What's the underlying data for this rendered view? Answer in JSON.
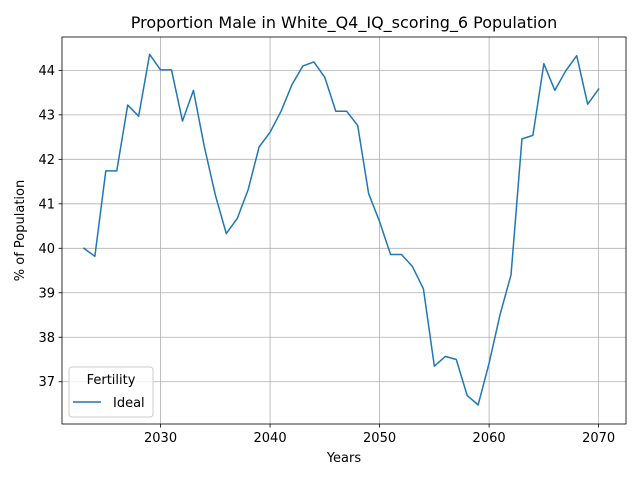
{
  "chart_data": {
    "type": "line",
    "title": "Proportion Male in White_Q4_IQ_scoring_6 Population",
    "xlabel": "Years",
    "ylabel": "% of Population",
    "xlim": [
      2021,
      2072.5
    ],
    "ylim": [
      36.05,
      44.75
    ],
    "xticks": [
      2030,
      2040,
      2050,
      2060,
      2070
    ],
    "yticks": [
      37,
      38,
      39,
      40,
      41,
      42,
      43,
      44
    ],
    "grid": true,
    "legend": {
      "title": "Fertility",
      "placement": "lower-left"
    },
    "series": [
      {
        "name": "Ideal",
        "color": "#1f77b4",
        "x": [
          2023,
          2024,
          2025,
          2026,
          2027,
          2028,
          2029,
          2030,
          2031,
          2032,
          2033,
          2034,
          2035,
          2036,
          2037,
          2038,
          2039,
          2040,
          2041,
          2042,
          2043,
          2044,
          2045,
          2046,
          2047,
          2048,
          2049,
          2050,
          2051,
          2052,
          2053,
          2054,
          2055,
          2056,
          2057,
          2058,
          2059,
          2060,
          2061,
          2062,
          2063,
          2064,
          2065,
          2066,
          2067,
          2068,
          2069,
          2070
        ],
        "y": [
          40.0,
          39.82,
          41.74,
          41.74,
          43.22,
          42.97,
          44.36,
          44.01,
          44.01,
          42.86,
          43.55,
          42.28,
          41.2,
          40.33,
          40.67,
          41.32,
          42.28,
          42.61,
          43.08,
          43.68,
          44.1,
          44.19,
          43.84,
          43.08,
          43.08,
          42.76,
          41.23,
          40.6,
          39.86,
          39.86,
          39.59,
          39.09,
          37.35,
          37.57,
          37.5,
          36.69,
          36.48,
          37.42,
          38.51,
          39.4,
          42.46,
          42.54,
          44.15,
          43.55,
          43.99,
          44.33,
          43.24,
          43.58
        ]
      }
    ]
  }
}
